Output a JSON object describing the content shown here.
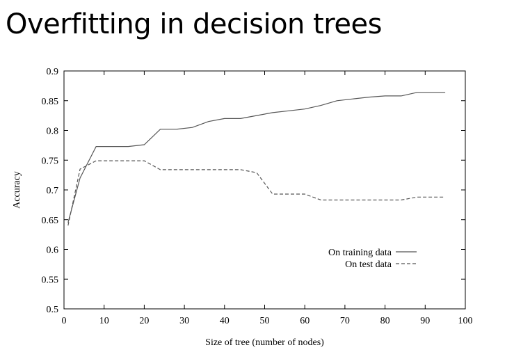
{
  "slide": {
    "title": "Overfitting in decision trees"
  },
  "chart_data": {
    "type": "line",
    "title": "",
    "xlabel": "Size of tree (number of nodes)",
    "ylabel": "Accuracy",
    "xlim": [
      0,
      100
    ],
    "ylim": [
      0.5,
      0.9
    ],
    "x_ticks": [
      0,
      10,
      20,
      30,
      40,
      50,
      60,
      70,
      80,
      90,
      100
    ],
    "y_ticks": [
      0.5,
      0.55,
      0.6,
      0.65,
      0.7,
      0.75,
      0.8,
      0.85,
      0.9
    ],
    "legend_position": "right",
    "grid": false,
    "series": [
      {
        "name": "On training data",
        "style": "solid",
        "color": "#555555",
        "x": [
          1,
          4,
          8,
          16,
          20,
          24,
          28,
          32,
          36,
          40,
          44,
          48,
          52,
          56,
          60,
          64,
          68,
          72,
          76,
          80,
          84,
          88,
          92,
          95
        ],
        "y": [
          0.645,
          0.72,
          0.773,
          0.773,
          0.776,
          0.802,
          0.802,
          0.805,
          0.815,
          0.82,
          0.82,
          0.825,
          0.83,
          0.833,
          0.836,
          0.842,
          0.85,
          0.853,
          0.856,
          0.858,
          0.858,
          0.864,
          0.864,
          0.864
        ]
      },
      {
        "name": "On test data",
        "style": "dashed",
        "color": "#555555",
        "x": [
          1,
          4,
          8,
          16,
          20,
          24,
          28,
          32,
          36,
          40,
          44,
          48,
          52,
          56,
          60,
          64,
          68,
          72,
          76,
          80,
          84,
          88,
          92,
          95
        ],
        "y": [
          0.64,
          0.735,
          0.749,
          0.749,
          0.749,
          0.734,
          0.734,
          0.734,
          0.734,
          0.734,
          0.734,
          0.729,
          0.693,
          0.693,
          0.693,
          0.683,
          0.683,
          0.683,
          0.683,
          0.683,
          0.683,
          0.688,
          0.688,
          0.688
        ]
      }
    ]
  }
}
